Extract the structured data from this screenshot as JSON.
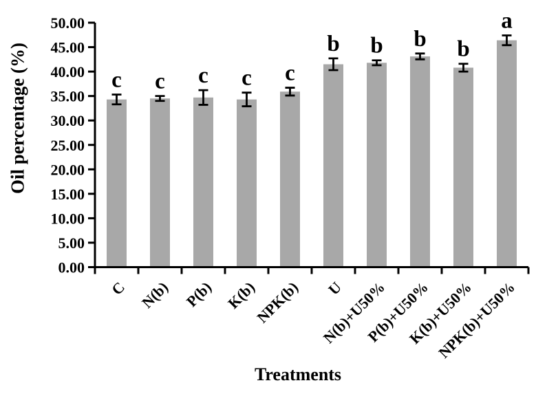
{
  "chart_data": {
    "type": "bar",
    "title": "",
    "xlabel": "Treatments",
    "ylabel": "Oil percentage (%)",
    "categories": [
      "C",
      "N(b)",
      "P(b)",
      "K(b)",
      "NPK(b)",
      "U",
      "N(b)+U50%",
      "P(b)+U50%",
      "K(b)+U50%",
      "NPK(b)+U50%"
    ],
    "values": [
      34.3,
      34.5,
      34.7,
      34.3,
      35.9,
      41.5,
      41.8,
      43.1,
      40.8,
      46.4
    ],
    "error_bars": [
      1.0,
      0.5,
      1.5,
      1.4,
      0.8,
      1.2,
      0.5,
      0.6,
      0.8,
      1.0
    ],
    "sig_letters": [
      "c",
      "c",
      "c",
      "c",
      "c",
      "b",
      "b",
      "b",
      "b",
      "a"
    ],
    "ytick_labels": [
      "0.00",
      "5.00",
      "10.00",
      "15.00",
      "20.00",
      "25.00",
      "30.00",
      "35.00",
      "40.00",
      "45.00",
      "50.00"
    ],
    "ylim": [
      0,
      50
    ],
    "ytick_step": 5,
    "grid": false,
    "legend_position": "none",
    "bar_color": "#a8a8a8",
    "axis_color": "#000000",
    "error_bar_color": "#000000",
    "text_color": "#000000"
  }
}
